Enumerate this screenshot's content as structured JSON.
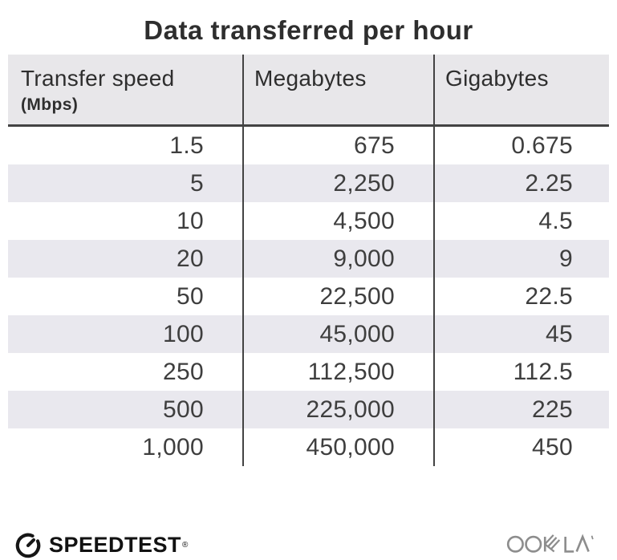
{
  "title": "Data transferred per hour",
  "table": {
    "header": {
      "col1_label": "Transfer speed",
      "col1_sublabel": "(Mbps)",
      "col2_label": "Megabytes",
      "col3_label": "Gigabytes"
    },
    "rows": [
      [
        "1.5",
        "675",
        "0.675"
      ],
      [
        "5",
        "2,250",
        "2.25"
      ],
      [
        "10",
        "4,500",
        "4.5"
      ],
      [
        "20",
        "9,000",
        "9"
      ],
      [
        "50",
        "22,500",
        "22.5"
      ],
      [
        "100",
        "45,000",
        "45"
      ],
      [
        "250",
        "112,500",
        "112.5"
      ],
      [
        "500",
        "225,000",
        "225"
      ],
      [
        "1,000",
        "450,000",
        "450"
      ]
    ]
  },
  "chart_data": {
    "type": "table",
    "title": "Data transferred per hour",
    "columns": [
      "Transfer speed (Mbps)",
      "Megabytes",
      "Gigabytes"
    ],
    "rows": [
      [
        1.5,
        675,
        0.675
      ],
      [
        5,
        2250,
        2.25
      ],
      [
        10,
        4500,
        4.5
      ],
      [
        20,
        9000,
        9
      ],
      [
        50,
        22500,
        22.5
      ],
      [
        100,
        45000,
        45
      ],
      [
        250,
        112500,
        112.5
      ],
      [
        500,
        225000,
        225
      ],
      [
        1000,
        450000,
        450
      ]
    ],
    "layout": {
      "alternating_row_shading": true,
      "column_dividers": true,
      "header_underline": true
    }
  },
  "footer": {
    "brand": "SPEEDTEST",
    "brand_trademark": "®",
    "company": "OOKLA"
  },
  "colors": {
    "header_bg": "#e8e7ea",
    "alt_row_bg": "#e9e8ee",
    "rule_dark": "#434343",
    "text_dark": "#2e2e2e",
    "ookla_gray": "#8d8d8d"
  }
}
